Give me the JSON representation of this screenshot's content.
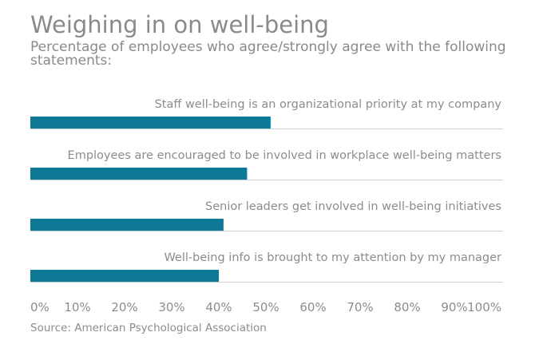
{
  "chart_data": {
    "type": "bar",
    "orientation": "horizontal",
    "title": "Weighing in on well-being",
    "subtitle": "Percentage of employees who agree/strongly agree with the following statements:",
    "categories": [
      "Staff well-being is an organizational priority at my company",
      "Employees are encouraged to be involved in workplace well-being matters",
      "Senior leaders get involved in well-being initiatives",
      "Well-being info is brought to my attention by my manager"
    ],
    "values": [
      51,
      46,
      41,
      40
    ],
    "xlim": [
      0,
      100
    ],
    "xticks": [
      "0%",
      "10%",
      "20%",
      "30%",
      "40%",
      "50%",
      "60%",
      "70%",
      "80%",
      "90%",
      "100%"
    ],
    "bar_color": "#0f7894",
    "gridlines": false,
    "legend": "none"
  },
  "source": "Source: American Psychological Association"
}
